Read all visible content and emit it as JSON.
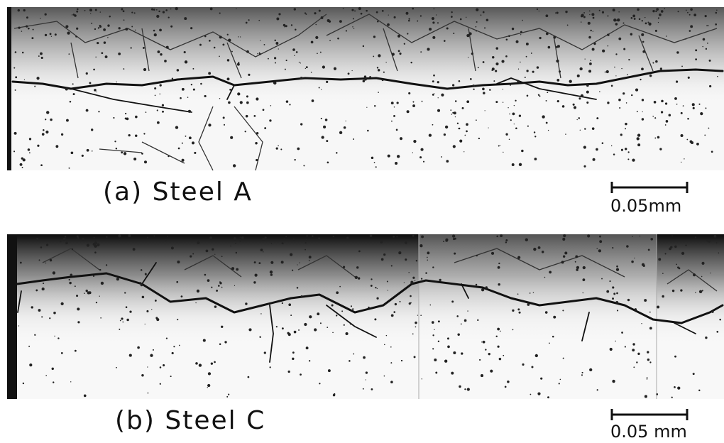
{
  "panels": [
    {
      "caption": "(a) Steel A",
      "scale_label": "0.05mm"
    },
    {
      "caption": "(b) Steel C",
      "scale_label": "0.05 mm"
    }
  ]
}
